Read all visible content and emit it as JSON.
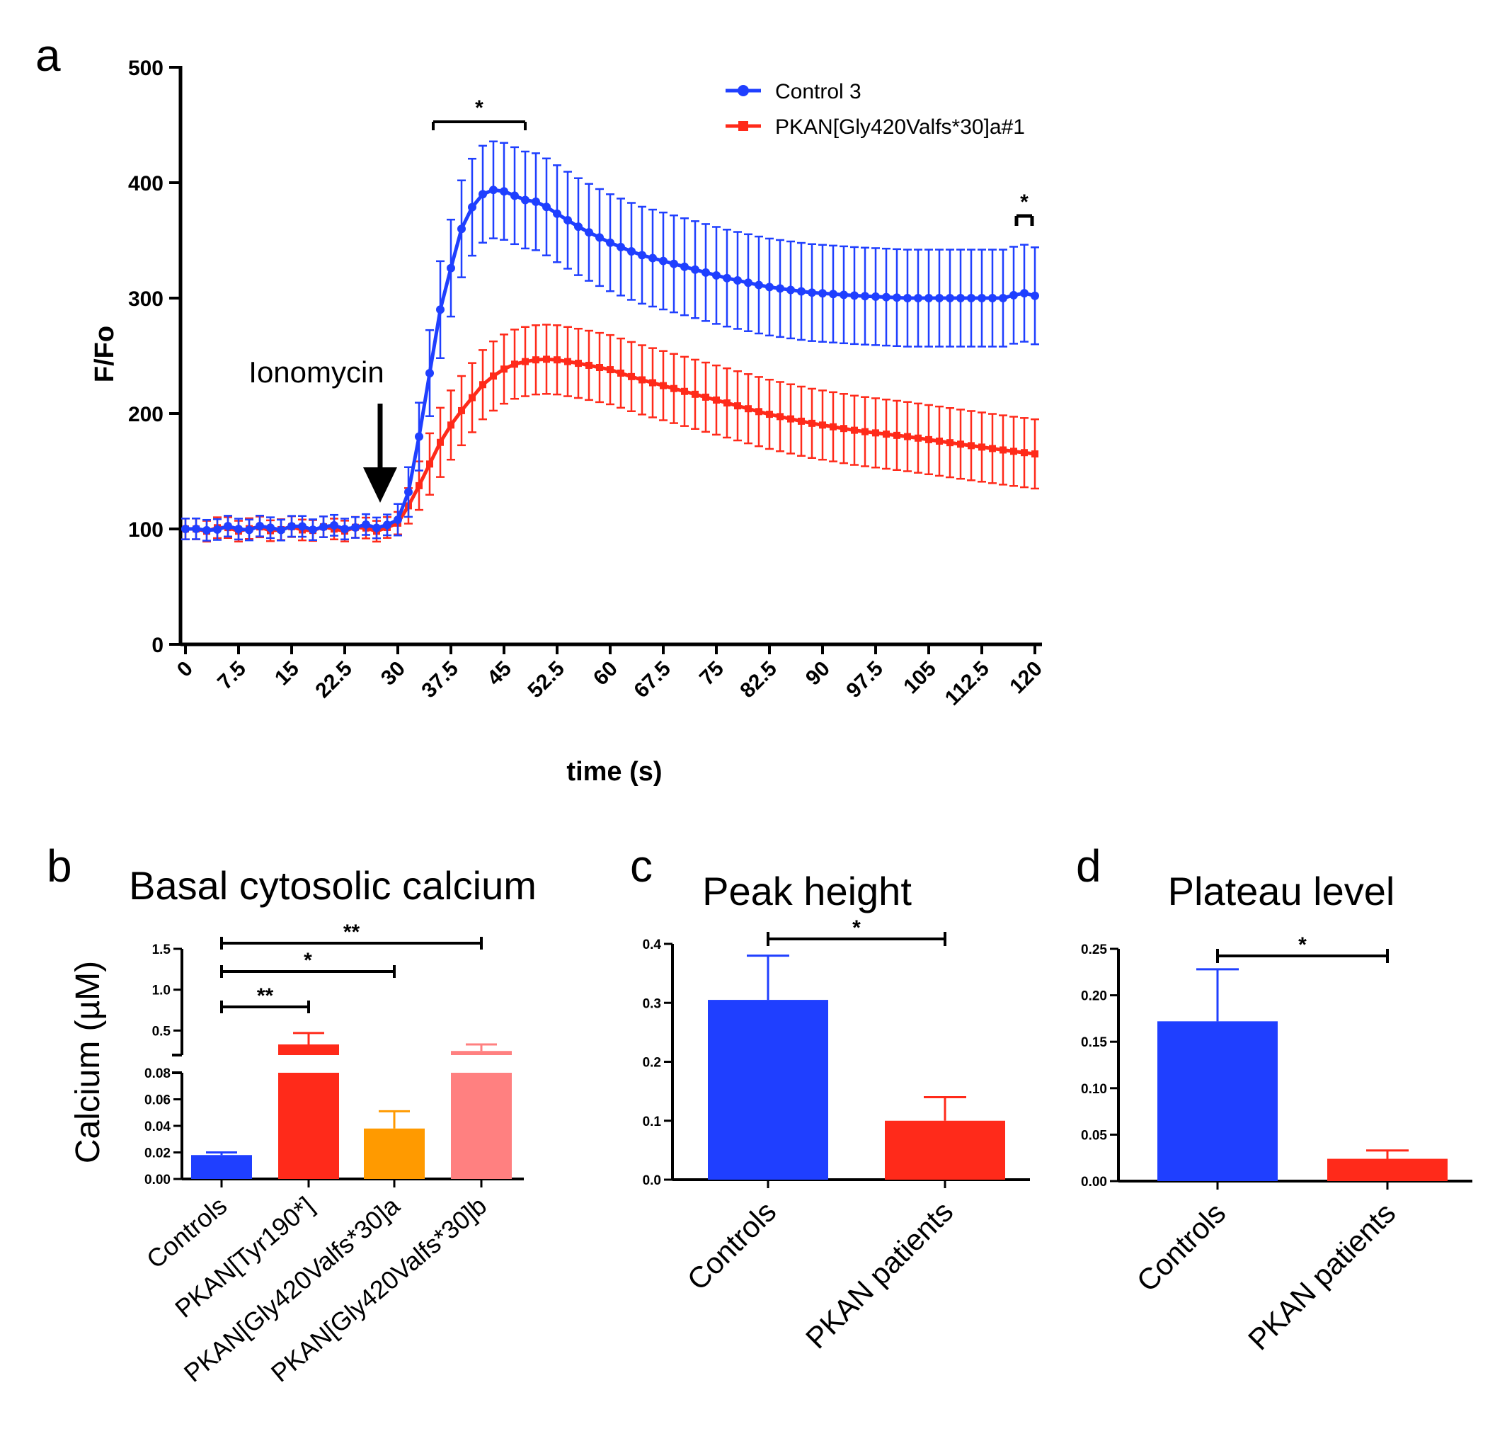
{
  "chart_data": [
    {
      "panel": "a",
      "type": "line",
      "title": "",
      "xlabel": "time (s)",
      "ylabel": "F/Fo",
      "xlim": [
        0,
        120
      ],
      "ylim": [
        0,
        500
      ],
      "yticks": [
        "0",
        "100",
        "200",
        "300",
        "400",
        "500"
      ],
      "xticks": [
        "0",
        "7.5",
        "15",
        "22.5",
        "30",
        "37.5",
        "45",
        "52.5",
        "60",
        "67.5",
        "75",
        "82.5",
        "90",
        "97.5",
        "105",
        "112.5",
        "120"
      ],
      "legend_position": "top-right",
      "annotation": "Ionomycin",
      "annotation_x": 27.5,
      "significance": [
        {
          "label": "*",
          "x_start": 35,
          "x_end": 48
        },
        {
          "label": "*",
          "x_start": 117,
          "x_end": 120
        }
      ],
      "series": [
        {
          "name": "Control 3",
          "color": "#1f3fff",
          "marker": "circle",
          "anchors": [
            [
              0,
              100
            ],
            [
              28,
              102
            ],
            [
              30,
              108
            ],
            [
              32,
              140
            ],
            [
              33,
              180
            ],
            [
              34,
              215
            ],
            [
              35,
              255
            ],
            [
              36,
              290
            ],
            [
              37,
              312
            ],
            [
              38,
              340
            ],
            [
              39,
              360
            ],
            [
              40,
              375
            ],
            [
              42,
              390
            ],
            [
              44,
              395
            ],
            [
              46,
              390
            ],
            [
              48,
              385
            ],
            [
              50,
              383
            ],
            [
              52,
              375
            ],
            [
              56,
              360
            ],
            [
              60,
              348
            ],
            [
              64,
              338
            ],
            [
              70,
              328
            ],
            [
              76,
              318
            ],
            [
              82,
              310
            ],
            [
              88,
              305
            ],
            [
              95,
              302
            ],
            [
              102,
              300
            ],
            [
              110,
              300
            ],
            [
              116,
              300
            ],
            [
              118,
              305
            ],
            [
              120,
              302
            ]
          ],
          "error": 42
        },
        {
          "name": "PKAN[Gly420Valfs*30]a#1",
          "color": "#ff2a1a",
          "marker": "square",
          "anchors": [
            [
              0,
              100
            ],
            [
              28,
              100
            ],
            [
              30,
              105
            ],
            [
              32,
              125
            ],
            [
              34,
              150
            ],
            [
              36,
              175
            ],
            [
              38,
              195
            ],
            [
              40,
              210
            ],
            [
              42,
              225
            ],
            [
              44,
              235
            ],
            [
              46,
              242
            ],
            [
              48,
              245
            ],
            [
              50,
              247
            ],
            [
              52,
              247
            ],
            [
              56,
              243
            ],
            [
              60,
              238
            ],
            [
              64,
              230
            ],
            [
              70,
              220
            ],
            [
              76,
              210
            ],
            [
              82,
              200
            ],
            [
              88,
              192
            ],
            [
              95,
              185
            ],
            [
              102,
              180
            ],
            [
              110,
              173
            ],
            [
              116,
              168
            ],
            [
              120,
              165
            ]
          ],
          "error": 30
        }
      ]
    },
    {
      "panel": "b",
      "type": "bar",
      "title": "Basal cytosolic calcium",
      "ylabel": "Calcium (µM)",
      "categories": [
        "Controls",
        "PKAN[Tyr190*]",
        "PKAN[Gly420Valfs*30]a",
        "PKAN[Gly420Valfs*30]b"
      ],
      "values": [
        0.018,
        0.33,
        0.038,
        0.25
      ],
      "errors": [
        0.002,
        0.14,
        0.013,
        0.08
      ],
      "colors": [
        "#1f3fff",
        "#ff2a1a",
        "#ff9a00",
        "#ff8080"
      ],
      "ylim_lower": [
        0,
        0.08
      ],
      "ylim_upper": [
        0.2,
        1.5
      ],
      "yticks_lower": [
        "0.00",
        "0.02",
        "0.04",
        "0.06",
        "0.08"
      ],
      "yticks_upper": [
        "0.5",
        "1.0",
        "1.5"
      ],
      "significance": [
        {
          "label": "**",
          "from": 0,
          "to": 1
        },
        {
          "label": "*",
          "from": 0,
          "to": 2
        },
        {
          "label": "**",
          "from": 0,
          "to": 3
        }
      ]
    },
    {
      "panel": "c",
      "type": "bar",
      "title": "Peak height",
      "categories": [
        "Controls",
        "PKAN patients"
      ],
      "values": [
        0.305,
        0.1
      ],
      "errors": [
        0.075,
        0.04
      ],
      "colors": [
        "#1f3fff",
        "#ff2a1a"
      ],
      "ylim": [
        0,
        0.4
      ],
      "yticks": [
        "0.0",
        "0.1",
        "0.2",
        "0.3",
        "0.4"
      ],
      "significance": [
        {
          "label": "*",
          "from": 0,
          "to": 1
        }
      ]
    },
    {
      "panel": "d",
      "type": "bar",
      "title": "Plateau level",
      "categories": [
        "Controls",
        "PKAN patients"
      ],
      "values": [
        0.172,
        0.024
      ],
      "errors": [
        0.056,
        0.009
      ],
      "colors": [
        "#1f3fff",
        "#ff2a1a"
      ],
      "ylim": [
        0,
        0.25
      ],
      "yticks": [
        "0.00",
        "0.05",
        "0.10",
        "0.15",
        "0.20",
        "0.25"
      ],
      "significance": [
        {
          "label": "*",
          "from": 0,
          "to": 1
        }
      ]
    }
  ],
  "panel_labels": [
    "a",
    "b",
    "c",
    "d"
  ]
}
